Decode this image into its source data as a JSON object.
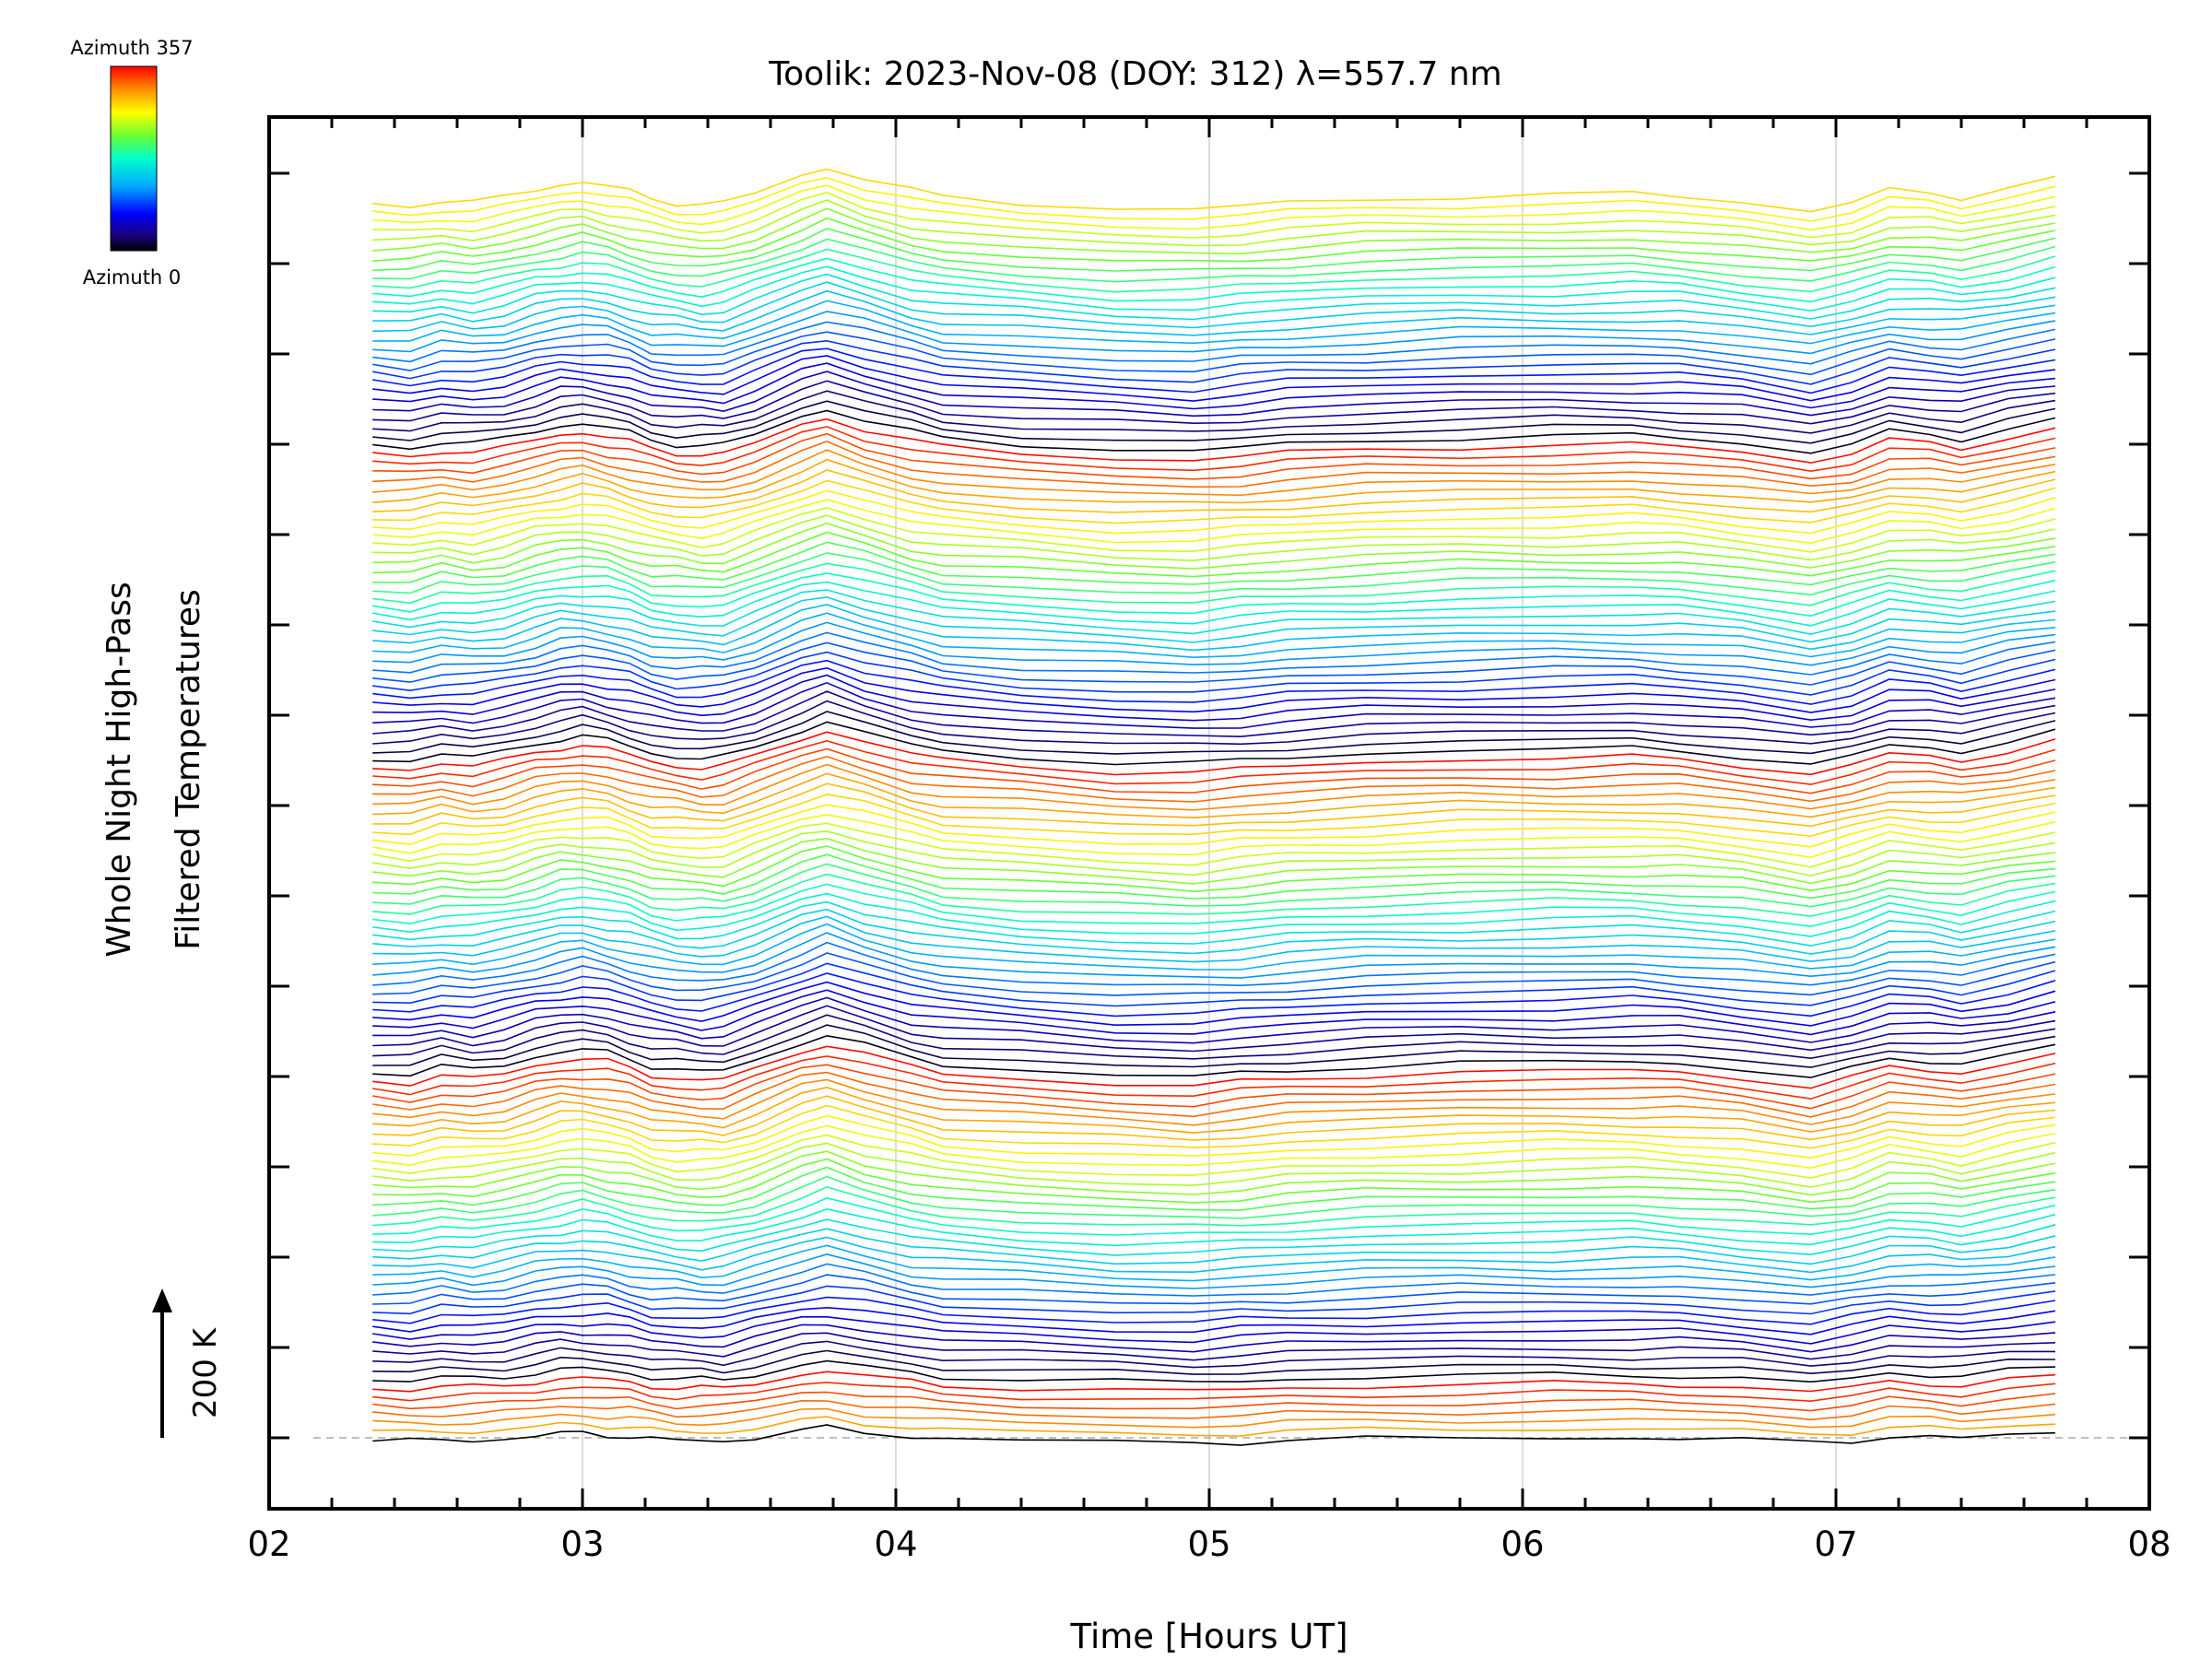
{
  "chart_data": {
    "type": "line",
    "title": "Toolik: 2023-Nov-08 (DOY: 312) λ=557.7 nm",
    "xlabel": "Time [Hours UT]",
    "ylabel": [
      "Whole Night High-Pass",
      "Filtered Temperatures"
    ],
    "xlim": [
      2,
      8
    ],
    "x_ticks": [
      "02",
      "03",
      "04",
      "05",
      "06",
      "07",
      "08"
    ],
    "x_range": [
      2.33,
      7.7
    ],
    "colorbar": {
      "label_top": "Azimuth 357",
      "label_bottom": "Azimuth 0",
      "colormap": "rainbow",
      "range": [
        0,
        357
      ]
    },
    "scale_bar": {
      "label": "200 K"
    },
    "grid": "vertical",
    "series_count": 140,
    "series_spacing": "one trace per azimuth, vertically stacked",
    "key_times": [
      2.33,
      2.45,
      2.55,
      2.65,
      2.75,
      2.85,
      2.93,
      3.0,
      3.08,
      3.15,
      3.22,
      3.3,
      3.38,
      3.45,
      3.55,
      3.7,
      3.78,
      3.9,
      4.05,
      4.15,
      4.4,
      4.7,
      4.95,
      5.1,
      5.25,
      5.5,
      5.8,
      6.1,
      6.35,
      6.5,
      6.7,
      6.92,
      7.05,
      7.17,
      7.3,
      7.4,
      7.55,
      7.7
    ],
    "base_profile": [
      -10,
      -12,
      -5,
      -8,
      -3,
      6,
      12,
      14,
      10,
      4,
      -4,
      -8,
      -10,
      -9,
      2,
      22,
      30,
      18,
      5,
      -2,
      -8,
      -14,
      -16,
      -12,
      -8,
      -4,
      -1,
      0,
      1,
      -1,
      -7,
      -17,
      -8,
      5,
      2,
      -2,
      8,
      18
    ],
    "baseline_y": 0
  },
  "colors": {
    "background": "#ffffff",
    "axis": "#000000",
    "grid": "#c8c8c8",
    "baseline": "#aaaaaa"
  }
}
